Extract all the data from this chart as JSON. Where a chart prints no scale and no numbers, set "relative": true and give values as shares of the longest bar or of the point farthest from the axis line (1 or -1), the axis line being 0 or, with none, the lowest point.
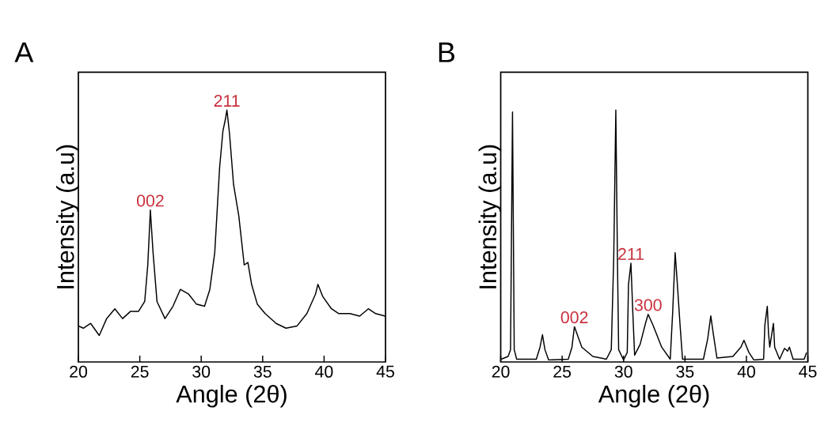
{
  "chart_data": [
    {
      "type": "line",
      "title": "A",
      "xlabel": "Angle (2θ)",
      "ylabel": "Intensity (a.u)",
      "relative": true,
      "tick_labels": "x",
      "color": "#000000",
      "xlim": [
        20,
        45
      ],
      "xticks": [
        20,
        25,
        30,
        35,
        40,
        45
      ],
      "x": [
        20.0,
        20.4,
        21.0,
        21.7,
        22.3,
        22.97,
        23.6,
        24.25,
        24.9,
        25.4,
        25.65,
        25.86,
        26.08,
        26.4,
        27.05,
        27.7,
        28.3,
        28.98,
        29.6,
        30.27,
        30.7,
        31.1,
        31.5,
        31.77,
        31.98,
        32.09,
        32.3,
        32.63,
        33.06,
        33.5,
        33.8,
        34.1,
        34.56,
        35.2,
        36.1,
        36.9,
        37.8,
        38.6,
        39.3,
        39.5,
        39.9,
        40.6,
        41.2,
        42.1,
        42.9,
        43.6,
        44.2,
        44.98
      ],
      "values": [
        0.143,
        0.134,
        0.153,
        0.105,
        0.172,
        0.211,
        0.172,
        0.201,
        0.201,
        0.24,
        0.385,
        0.603,
        0.434,
        0.24,
        0.172,
        0.221,
        0.288,
        0.269,
        0.23,
        0.221,
        0.288,
        0.434,
        0.773,
        0.918,
        0.966,
        1.0,
        0.908,
        0.705,
        0.579,
        0.385,
        0.395,
        0.308,
        0.23,
        0.192,
        0.153,
        0.134,
        0.143,
        0.192,
        0.269,
        0.308,
        0.259,
        0.211,
        0.192,
        0.192,
        0.182,
        0.211,
        0.192,
        0.182
      ],
      "annotations": [
        {
          "text": "002",
          "x": 25.86,
          "y": 0.603
        },
        {
          "text": "211",
          "x": 32.09,
          "y": 1.0
        }
      ]
    },
    {
      "type": "line",
      "title": "B",
      "xlabel": "Angle (2θ)",
      "ylabel": "Intensity (a.u)",
      "relative": true,
      "tick_labels": "x",
      "color": "#000000",
      "xlim": [
        20,
        45
      ],
      "xticks": [
        20,
        25,
        30,
        35,
        40,
        45
      ],
      "x": [
        20.04,
        20.6,
        20.8,
        20.96,
        21.1,
        21.3,
        22.9,
        23.2,
        23.4,
        23.6,
        23.9,
        25.5,
        25.8,
        26.0,
        26.2,
        26.6,
        27.5,
        28.6,
        29.0,
        29.2,
        29.37,
        29.5,
        29.6,
        30.0,
        30.3,
        30.4,
        30.6,
        30.75,
        30.9,
        31.35,
        31.8,
        32.0,
        32.4,
        33.1,
        33.8,
        34.0,
        34.2,
        34.35,
        34.6,
        34.8,
        36.5,
        36.85,
        37.1,
        37.3,
        37.6,
        38.9,
        39.55,
        39.8,
        40.2,
        40.6,
        41.4,
        41.5,
        41.7,
        41.8,
        41.9,
        42.2,
        42.3,
        42.7,
        43.1,
        43.35,
        43.5,
        43.8,
        44.7,
        44.9
      ],
      "values": [
        0.011,
        0.022,
        0.049,
        0.992,
        0.049,
        0.011,
        0.011,
        0.059,
        0.108,
        0.049,
        0.008,
        0.011,
        0.059,
        0.14,
        0.113,
        0.059,
        0.022,
        0.011,
        0.049,
        0.415,
        1.0,
        0.415,
        0.049,
        0.008,
        0.038,
        0.307,
        0.392,
        0.2,
        0.027,
        0.07,
        0.156,
        0.189,
        0.146,
        0.059,
        0.011,
        0.2,
        0.434,
        0.329,
        0.146,
        0.011,
        0.011,
        0.092,
        0.183,
        0.113,
        0.016,
        0.022,
        0.059,
        0.086,
        0.038,
        0.008,
        0.011,
        0.146,
        0.221,
        0.113,
        0.059,
        0.153,
        0.059,
        0.011,
        0.054,
        0.043,
        0.059,
        0.011,
        0.011,
        0.038
      ],
      "annotations": [
        {
          "text": "002",
          "x": 26.0,
          "y": 0.14
        },
        {
          "text": "211",
          "x": 30.6,
          "y": 0.392
        },
        {
          "text": "300",
          "x": 32.0,
          "y": 0.189
        }
      ]
    }
  ]
}
